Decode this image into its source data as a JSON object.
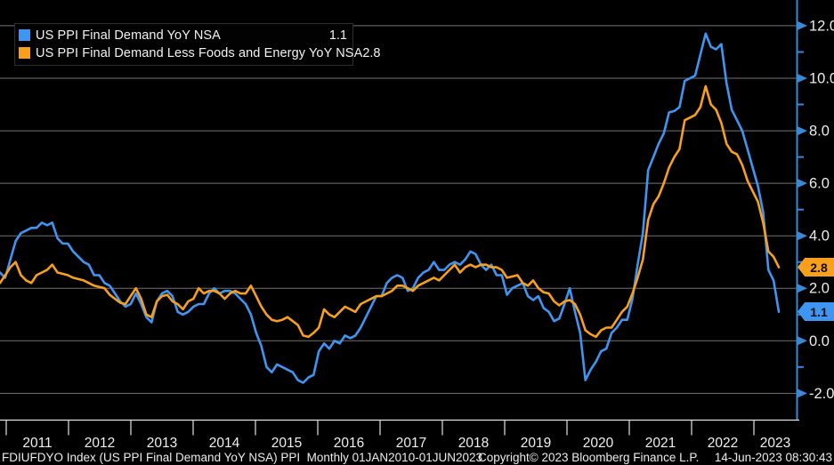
{
  "legend": {
    "series": [
      {
        "label": "US PPI Final Demand YoY NSA",
        "value": "1.1"
      },
      {
        "label": "US PPI Final Demand Less Foods and Energy YoY NSA",
        "value": "2.8"
      }
    ]
  },
  "status_bar": {
    "left": "FDIUFDYO Index (US PPI Final Demand YoY NSA) PPI  Monthly 01JAN2010-01JUN2023",
    "copyright": "Copyright© 2023 Bloomberg Finance L.P.",
    "timestamp": "14-Jun-2023 08:30:43"
  },
  "axes": {
    "y_major": [
      12,
      10,
      8,
      6,
      4,
      2,
      0,
      -2
    ],
    "y_labels": [
      "12.0",
      "10.0",
      "8.0",
      "6.0",
      "4.0",
      "2.0",
      "0.0",
      "-2.0"
    ],
    "y_minor": [
      11,
      9,
      7,
      5,
      3,
      1,
      -1
    ],
    "x_years": [
      "2011",
      "2012",
      "2013",
      "2014",
      "2015",
      "2016",
      "2017",
      "2018",
      "2019",
      "2020",
      "2021",
      "2022",
      "2023"
    ],
    "grid_color": "#737373",
    "axis_color": "#3c87d6",
    "label_color": "#ededed"
  },
  "chart_data": {
    "type": "line",
    "frequency": "Monthly",
    "x_range_label": "01JAN2010-01JUN2023",
    "visible_x_start": "2010-12",
    "x_step_months": 1,
    "ylim": [
      -3.0,
      13.0
    ],
    "grid": true,
    "legend_position": "top-left",
    "series": [
      {
        "id": "ppi-final-demand-yoy",
        "name": "US PPI Final Demand YoY NSA",
        "color": "#3e96f2",
        "last_value": 1.1,
        "values": [
          2.6,
          2.4,
          3.1,
          3.8,
          4.1,
          4.2,
          4.3,
          4.3,
          4.5,
          4.4,
          4.5,
          3.9,
          3.7,
          3.7,
          3.4,
          3.2,
          3.0,
          2.9,
          2.5,
          2.5,
          2.2,
          2.1,
          1.8,
          1.5,
          1.3,
          1.4,
          1.8,
          1.4,
          0.9,
          0.7,
          1.5,
          1.8,
          1.9,
          1.7,
          1.1,
          1.0,
          1.1,
          1.3,
          1.4,
          1.4,
          1.8,
          2.0,
          1.8,
          1.9,
          1.9,
          1.8,
          1.6,
          1.4,
          1.0,
          0.3,
          -0.2,
          -1.0,
          -1.2,
          -0.9,
          -1.0,
          -1.1,
          -1.2,
          -1.5,
          -1.6,
          -1.4,
          -1.3,
          -0.4,
          -0.1,
          -0.3,
          0.0,
          -0.1,
          0.2,
          0.1,
          0.2,
          0.5,
          0.9,
          1.3,
          1.7,
          1.7,
          2.2,
          2.4,
          2.5,
          2.4,
          1.9,
          2.0,
          2.4,
          2.6,
          2.7,
          3.0,
          2.7,
          2.7,
          2.9,
          3.0,
          2.9,
          3.1,
          3.4,
          3.3,
          2.9,
          2.7,
          2.9,
          2.5,
          2.5,
          1.75,
          2.0,
          2.1,
          2.2,
          1.7,
          1.55,
          1.7,
          1.25,
          1.1,
          0.75,
          0.85,
          1.4,
          2.0,
          1.1,
          0.3,
          -1.5,
          -1.1,
          -0.8,
          -0.4,
          -0.3,
          0.3,
          0.5,
          0.8,
          0.8,
          1.6,
          2.9,
          4.1,
          6.5,
          7.0,
          7.5,
          7.9,
          8.7,
          8.75,
          8.9,
          9.9,
          10.0,
          10.1,
          10.9,
          11.7,
          11.2,
          11.1,
          11.3,
          9.8,
          8.8,
          8.4,
          8.0,
          7.3,
          6.6,
          5.9,
          4.9,
          2.7,
          2.3,
          1.1
        ]
      },
      {
        "id": "core-ppi-yoy",
        "name": "US PPI Final Demand Less Foods and Energy YoY NSA",
        "color": "#f8a01c",
        "last_value": 2.8,
        "values": [
          2.2,
          2.5,
          2.8,
          3.0,
          2.5,
          2.3,
          2.2,
          2.5,
          2.6,
          2.7,
          2.9,
          2.6,
          2.55,
          2.5,
          2.4,
          2.35,
          2.3,
          2.2,
          2.1,
          2.05,
          2.0,
          1.75,
          1.6,
          1.45,
          1.4,
          1.7,
          2.0,
          1.6,
          1.0,
          0.9,
          1.5,
          1.7,
          1.75,
          1.5,
          1.4,
          1.2,
          1.5,
          1.6,
          2.0,
          1.8,
          1.9,
          1.9,
          1.8,
          1.6,
          1.8,
          1.9,
          1.8,
          1.8,
          2.1,
          1.7,
          1.3,
          1.0,
          0.8,
          0.75,
          0.8,
          0.9,
          0.75,
          0.6,
          0.2,
          0.15,
          0.3,
          0.5,
          1.2,
          1.0,
          0.9,
          1.1,
          1.3,
          1.2,
          1.1,
          1.4,
          1.5,
          1.6,
          1.7,
          1.7,
          1.8,
          1.9,
          2.1,
          2.1,
          2.0,
          1.9,
          2.1,
          2.2,
          2.3,
          2.4,
          2.3,
          2.5,
          2.7,
          2.9,
          2.6,
          2.8,
          2.9,
          2.8,
          2.9,
          2.9,
          2.8,
          2.8,
          2.7,
          2.4,
          2.45,
          2.5,
          2.2,
          2.1,
          2.3,
          2.0,
          1.85,
          1.8,
          1.5,
          1.35,
          1.5,
          1.55,
          1.4,
          1.0,
          0.4,
          0.25,
          0.15,
          0.4,
          0.5,
          0.5,
          0.8,
          1.1,
          1.3,
          1.8,
          2.4,
          3.1,
          4.6,
          5.2,
          5.5,
          6.0,
          6.6,
          7.0,
          7.3,
          8.4,
          8.5,
          8.6,
          8.9,
          9.7,
          9.0,
          8.8,
          8.3,
          7.5,
          7.2,
          7.1,
          6.7,
          6.1,
          5.7,
          5.3,
          4.5,
          3.4,
          3.2,
          2.8
        ]
      }
    ]
  }
}
